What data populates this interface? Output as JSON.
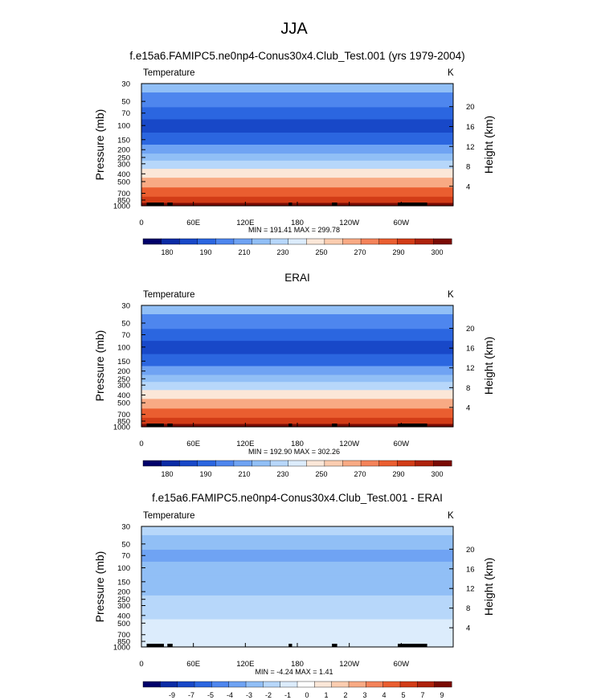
{
  "title": "JJA",
  "colors": {
    "temp_scale": [
      "#00006a",
      "#0a2ba5",
      "#1848c8",
      "#2b66e0",
      "#4e86ee",
      "#6fa3f3",
      "#91bff6",
      "#b7d7fa",
      "#dcecfc",
      "#fbe7d8",
      "#fbcdb0",
      "#f8aa84",
      "#f4835a",
      "#ea5e30",
      "#d23c17",
      "#ae220b",
      "#7a0a03"
    ],
    "diff_scale": [
      "#00006a",
      "#0a2ba5",
      "#1848c8",
      "#2b66e0",
      "#4e86ee",
      "#6fa3f3",
      "#91bff6",
      "#b7d7fa",
      "#dcecfc",
      "#ffffff",
      "#fbe7d8",
      "#fbcdb0",
      "#f8aa84",
      "#f4835a",
      "#ea5e30",
      "#d23c17",
      "#ae220b",
      "#7a0a03"
    ],
    "topo": "#000000"
  },
  "chart_data": [
    {
      "type": "heatmap",
      "title": "f.e15a6.FAMIPC5.ne0np4-Conus30x4.Club_Test.001 (yrs 1979-2004)",
      "left_label": "Temperature",
      "right_label": "K",
      "ylabel": "Pressure (mb)",
      "y2label": "Height (km)",
      "pressure_ticks": [
        30,
        50,
        70,
        100,
        150,
        200,
        250,
        300,
        400,
        500,
        700,
        850,
        1000
      ],
      "height_ticks": [
        4,
        8,
        12,
        16,
        20
      ],
      "x_ticks": [
        "0",
        "60E",
        "120E",
        "180",
        "120W",
        "60W"
      ],
      "x_tick_values": [
        0,
        60,
        120,
        180,
        240,
        300
      ],
      "xlim": [
        0,
        360
      ],
      "ylim": [
        1000,
        30
      ],
      "stats": "MIN = 191.41   MAX = 299.78",
      "colorbar_labels": [
        "180",
        "190",
        "210",
        "230",
        "250",
        "270",
        "290",
        "300"
      ],
      "levels": [
        {
          "p": 30,
          "v": 224
        },
        {
          "p": 50,
          "v": 213
        },
        {
          "p": 70,
          "v": 204
        },
        {
          "p": 100,
          "v": 197
        },
        {
          "p": 150,
          "v": 208
        },
        {
          "p": 200,
          "v": 218
        },
        {
          "p": 250,
          "v": 226
        },
        {
          "p": 300,
          "v": 232
        },
        {
          "p": 400,
          "v": 246
        },
        {
          "p": 500,
          "v": 258
        },
        {
          "p": 700,
          "v": 274
        },
        {
          "p": 850,
          "v": 284
        },
        {
          "p": 1000,
          "v": 295
        }
      ]
    },
    {
      "type": "heatmap",
      "title": "ERAI",
      "left_label": "Temperature",
      "right_label": "K",
      "ylabel": "Pressure (mb)",
      "y2label": "Height (km)",
      "pressure_ticks": [
        30,
        50,
        70,
        100,
        150,
        200,
        250,
        300,
        400,
        500,
        700,
        850,
        1000
      ],
      "height_ticks": [
        4,
        8,
        12,
        16,
        20
      ],
      "x_ticks": [
        "0",
        "60E",
        "120E",
        "180",
        "120W",
        "60W"
      ],
      "x_tick_values": [
        0,
        60,
        120,
        180,
        240,
        300
      ],
      "xlim": [
        0,
        360
      ],
      "ylim": [
        1000,
        30
      ],
      "stats": "MIN = 192.90   MAX = 302.26",
      "colorbar_labels": [
        "180",
        "190",
        "210",
        "230",
        "250",
        "270",
        "290",
        "300"
      ],
      "levels": [
        {
          "p": 30,
          "v": 224
        },
        {
          "p": 50,
          "v": 214
        },
        {
          "p": 70,
          "v": 205
        },
        {
          "p": 100,
          "v": 198
        },
        {
          "p": 150,
          "v": 208
        },
        {
          "p": 200,
          "v": 218
        },
        {
          "p": 250,
          "v": 227
        },
        {
          "p": 300,
          "v": 233
        },
        {
          "p": 400,
          "v": 247
        },
        {
          "p": 500,
          "v": 259
        },
        {
          "p": 700,
          "v": 275
        },
        {
          "p": 850,
          "v": 285
        },
        {
          "p": 1000,
          "v": 297
        }
      ]
    },
    {
      "type": "heatmap",
      "title": "f.e15a6.FAMIPC5.ne0np4-Conus30x4.Club_Test.001 - ERAI",
      "left_label": "Temperature",
      "right_label": "K",
      "ylabel": "Pressure (mb)",
      "y2label": "Height (km)",
      "pressure_ticks": [
        30,
        50,
        70,
        100,
        150,
        200,
        250,
        300,
        400,
        500,
        700,
        850,
        1000
      ],
      "height_ticks": [
        4,
        8,
        12,
        16,
        20
      ],
      "x_ticks": [
        "0",
        "60E",
        "120E",
        "180",
        "120W",
        "60W"
      ],
      "x_tick_values": [
        0,
        60,
        120,
        180,
        240,
        300
      ],
      "xlim": [
        0,
        360
      ],
      "ylim": [
        1000,
        30
      ],
      "stats": "MIN = -4.24   MAX =  1.41",
      "colorbar_labels": [
        "-9",
        "-7",
        "-5",
        "-4",
        "-3",
        "-2",
        "-1",
        "0",
        "1",
        "2",
        "3",
        "4",
        "5",
        "7",
        "9"
      ],
      "levels": [
        {
          "p": 30,
          "v": -1.5
        },
        {
          "p": 50,
          "v": -2.5
        },
        {
          "p": 70,
          "v": -3.5
        },
        {
          "p": 100,
          "v": -2.5
        },
        {
          "p": 150,
          "v": -2.5
        },
        {
          "p": 200,
          "v": -3.0
        },
        {
          "p": 250,
          "v": -2.0
        },
        {
          "p": 300,
          "v": -1.5
        },
        {
          "p": 400,
          "v": -1.5
        },
        {
          "p": 500,
          "v": -1.0
        },
        {
          "p": 700,
          "v": -1.0
        },
        {
          "p": 850,
          "v": -0.5
        },
        {
          "p": 1000,
          "v": -1.0
        }
      ]
    }
  ]
}
